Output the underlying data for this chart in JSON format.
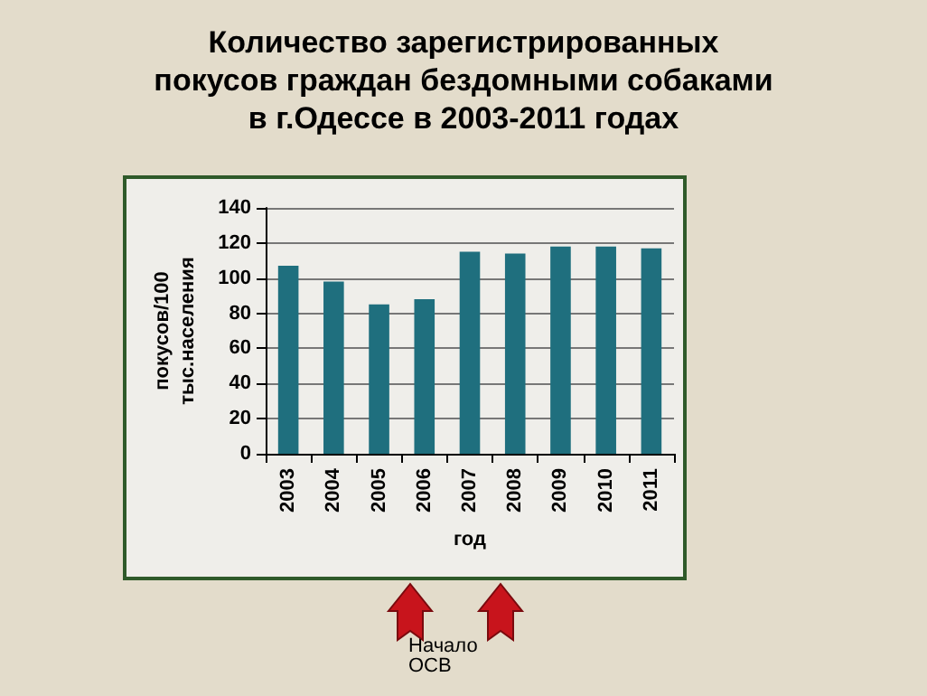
{
  "chart_data": {
    "type": "bar",
    "title": "Количество зарегистрированных\nпокусов граждан бездомными собаками\nв г.Одессе в 2003-2011 годах",
    "xlabel": "год",
    "ylabel": "покусов/100\nтыс.населения",
    "categories": [
      "2003",
      "2004",
      "2005",
      "2006",
      "2007",
      "2008",
      "2009",
      "2010",
      "2011"
    ],
    "values": [
      107,
      98,
      85,
      88,
      115,
      114,
      118,
      118,
      117
    ],
    "color": "#1f6f7e",
    "ylim": [
      0,
      140
    ],
    "yticks": [
      0,
      20,
      40,
      60,
      80,
      100,
      120,
      140
    ],
    "grid": "y",
    "annotations": [
      "Начало\nОСВ"
    ]
  }
}
